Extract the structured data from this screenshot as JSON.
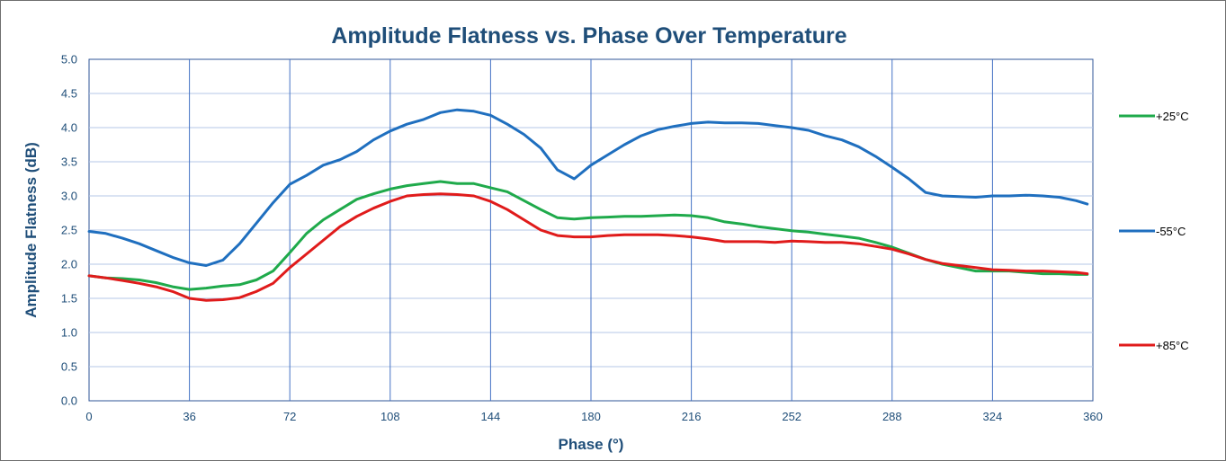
{
  "chart_data": {
    "type": "line",
    "title": "Amplitude Flatness vs. Phase Over Temperature",
    "xlabel": "Phase (°)",
    "ylabel": "Amplitude Flatness (dB)",
    "xlim": [
      0,
      360
    ],
    "ylim": [
      0,
      5
    ],
    "xticks": [
      0,
      36,
      72,
      108,
      144,
      180,
      216,
      252,
      288,
      324,
      360
    ],
    "xtick_labels": [
      "0",
      "36",
      "72",
      "108",
      "144",
      "180",
      "216",
      "252",
      "288",
      "324",
      "360"
    ],
    "yticks": [
      0,
      0.5,
      1,
      1.5,
      2,
      2.5,
      3,
      3.5,
      4,
      4.5,
      5
    ],
    "ytick_labels": [
      "0.0",
      "0.5",
      "1.0",
      "1.5",
      "2.0",
      "2.5",
      "3.0",
      "3.5",
      "4.0",
      "4.5",
      "5.0"
    ],
    "grid": "vertical and horizontal",
    "legend_placement": "right",
    "series": [
      {
        "name": "+25°C",
        "color": "#1faa4b",
        "x": [
          0,
          6,
          12,
          18,
          24,
          30,
          36,
          42,
          48,
          54,
          60,
          66,
          72,
          78,
          84,
          90,
          96,
          102,
          108,
          114,
          120,
          126,
          132,
          138,
          144,
          150,
          156,
          162,
          168,
          174,
          180,
          186,
          192,
          198,
          204,
          210,
          216,
          222,
          228,
          234,
          240,
          246,
          252,
          258,
          264,
          270,
          276,
          282,
          288,
          294,
          300,
          306,
          312,
          318,
          324,
          330,
          336,
          342,
          348,
          354,
          358
        ],
        "y": [
          1.83,
          1.8,
          1.79,
          1.77,
          1.73,
          1.67,
          1.63,
          1.65,
          1.68,
          1.7,
          1.77,
          1.9,
          2.17,
          2.45,
          2.65,
          2.8,
          2.95,
          3.03,
          3.1,
          3.15,
          3.18,
          3.21,
          3.18,
          3.18,
          3.12,
          3.06,
          2.93,
          2.8,
          2.68,
          2.66,
          2.68,
          2.69,
          2.7,
          2.7,
          2.71,
          2.72,
          2.71,
          2.68,
          2.62,
          2.59,
          2.55,
          2.52,
          2.49,
          2.47,
          2.44,
          2.41,
          2.38,
          2.32,
          2.25,
          2.16,
          2.07,
          2.0,
          1.95,
          1.9,
          1.9,
          1.9,
          1.88,
          1.86,
          1.86,
          1.85,
          1.85
        ]
      },
      {
        "name": "-55°C",
        "color": "#1f6fbf",
        "x": [
          0,
          6,
          12,
          18,
          24,
          30,
          36,
          42,
          48,
          54,
          60,
          66,
          72,
          78,
          84,
          90,
          96,
          102,
          108,
          114,
          120,
          126,
          132,
          138,
          144,
          150,
          156,
          162,
          168,
          174,
          180,
          186,
          192,
          198,
          204,
          210,
          216,
          222,
          228,
          234,
          240,
          246,
          252,
          258,
          264,
          270,
          276,
          282,
          288,
          294,
          300,
          306,
          312,
          318,
          324,
          330,
          336,
          342,
          348,
          354,
          358
        ],
        "y": [
          2.48,
          2.45,
          2.38,
          2.3,
          2.2,
          2.1,
          2.02,
          1.98,
          2.06,
          2.3,
          2.6,
          2.9,
          3.17,
          3.3,
          3.45,
          3.53,
          3.65,
          3.82,
          3.95,
          4.05,
          4.12,
          4.22,
          4.26,
          4.24,
          4.18,
          4.05,
          3.9,
          3.7,
          3.38,
          3.25,
          3.45,
          3.6,
          3.75,
          3.88,
          3.97,
          4.02,
          4.06,
          4.08,
          4.07,
          4.07,
          4.06,
          4.03,
          4.0,
          3.96,
          3.88,
          3.82,
          3.72,
          3.58,
          3.42,
          3.25,
          3.05,
          3.0,
          2.99,
          2.98,
          3.0,
          3.0,
          3.01,
          3.0,
          2.98,
          2.93,
          2.88
        ]
      },
      {
        "name": "+85°C",
        "color": "#e01b1b",
        "x": [
          0,
          6,
          12,
          18,
          24,
          30,
          36,
          42,
          48,
          54,
          60,
          66,
          72,
          78,
          84,
          90,
          96,
          102,
          108,
          114,
          120,
          126,
          132,
          138,
          144,
          150,
          156,
          162,
          168,
          174,
          180,
          186,
          192,
          198,
          204,
          210,
          216,
          222,
          228,
          234,
          240,
          246,
          252,
          258,
          264,
          270,
          276,
          282,
          288,
          294,
          300,
          306,
          312,
          318,
          324,
          330,
          336,
          342,
          348,
          354,
          358
        ],
        "y": [
          1.83,
          1.8,
          1.76,
          1.72,
          1.67,
          1.6,
          1.5,
          1.47,
          1.48,
          1.51,
          1.6,
          1.72,
          1.95,
          2.15,
          2.35,
          2.55,
          2.7,
          2.82,
          2.92,
          3.0,
          3.02,
          3.03,
          3.02,
          3.0,
          2.92,
          2.8,
          2.65,
          2.5,
          2.42,
          2.4,
          2.4,
          2.42,
          2.43,
          2.43,
          2.43,
          2.42,
          2.4,
          2.37,
          2.33,
          2.33,
          2.33,
          2.32,
          2.34,
          2.33,
          2.32,
          2.32,
          2.3,
          2.26,
          2.22,
          2.15,
          2.07,
          2.01,
          1.98,
          1.95,
          1.92,
          1.91,
          1.9,
          1.9,
          1.89,
          1.88,
          1.86
        ]
      }
    ]
  }
}
